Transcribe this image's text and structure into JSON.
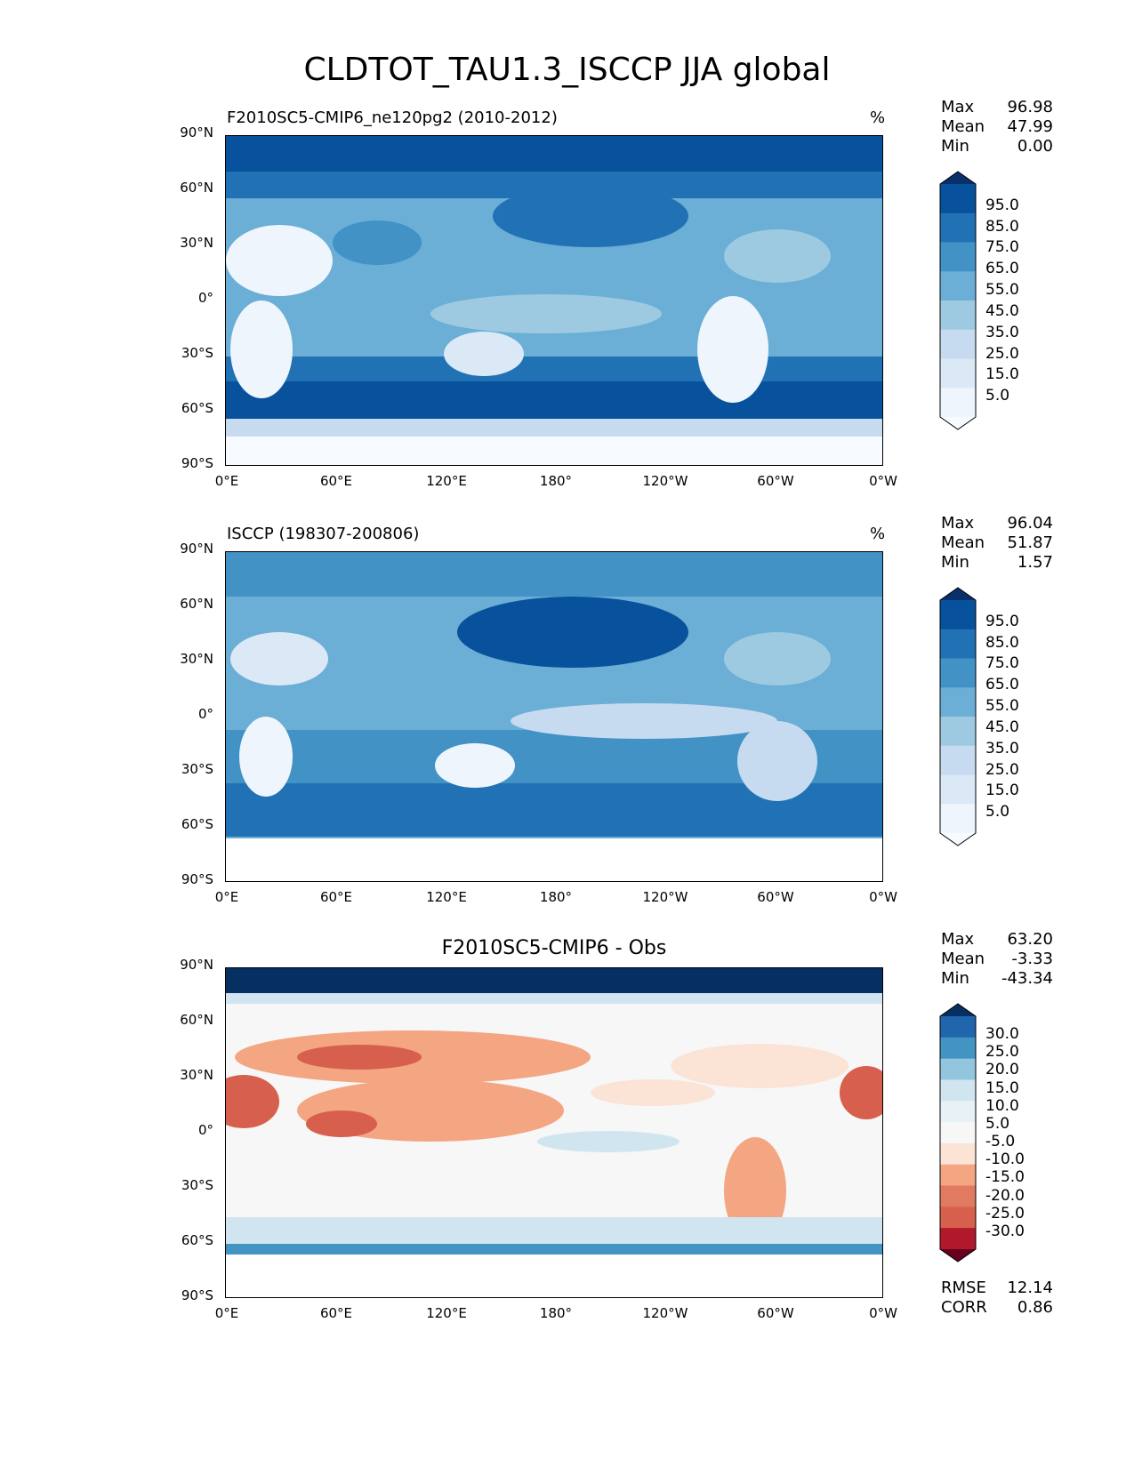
{
  "figure_title": "CLDTOT_TAU1.3_ISCCP JJA global",
  "chart_data": [
    {
      "type": "heatmap",
      "panel": "test",
      "title": "F2010SC5-CMIP6_ne120pg2 (2010-2012)",
      "units": "%",
      "stats": {
        "Max": "96.98",
        "Mean": "47.99",
        "Min": "0.00"
      },
      "xticks": [
        "0°E",
        "60°E",
        "120°E",
        "180°",
        "120°W",
        "60°W",
        "0°W"
      ],
      "yticks": [
        "90°N",
        "60°N",
        "30°N",
        "0°",
        "30°S",
        "60°S",
        "90°S"
      ],
      "xlim": [
        0,
        360
      ],
      "ylim": [
        -90,
        90
      ],
      "colorbar": {
        "labels": [
          "95.0",
          "85.0",
          "75.0",
          "65.0",
          "55.0",
          "45.0",
          "35.0",
          "25.0",
          "15.0",
          "5.0"
        ],
        "colors": [
          "#08306b",
          "#08519c",
          "#2171b5",
          "#4292c6",
          "#6baed6",
          "#9ecae1",
          "#c6dbef",
          "#dbe9f6",
          "#eef5fc",
          "#f7fbff"
        ],
        "extend": "both"
      }
    },
    {
      "type": "heatmap",
      "panel": "reference",
      "title": "ISCCP (198307-200806)",
      "units": "%",
      "stats": {
        "Max": "96.04",
        "Mean": "51.87",
        "Min": "1.57"
      },
      "xticks": [
        "0°E",
        "60°E",
        "120°E",
        "180°",
        "120°W",
        "60°W",
        "0°W"
      ],
      "yticks": [
        "90°N",
        "60°N",
        "30°N",
        "0°",
        "30°S",
        "60°S",
        "90°S"
      ],
      "xlim": [
        0,
        360
      ],
      "ylim": [
        -90,
        90
      ],
      "colorbar": {
        "labels": [
          "95.0",
          "85.0",
          "75.0",
          "65.0",
          "55.0",
          "45.0",
          "35.0",
          "25.0",
          "15.0",
          "5.0"
        ],
        "colors": [
          "#08306b",
          "#08519c",
          "#2171b5",
          "#4292c6",
          "#6baed6",
          "#9ecae1",
          "#c6dbef",
          "#dbe9f6",
          "#eef5fc",
          "#f7fbff"
        ],
        "extend": "both"
      }
    },
    {
      "type": "heatmap",
      "panel": "difference",
      "title": "F2010SC5-CMIP6 - Obs",
      "units": "",
      "stats": {
        "Max": "63.20",
        "Mean": "-3.33",
        "Min": "-43.34"
      },
      "footer_stats": {
        "RMSE": "12.14",
        "CORR": "0.86"
      },
      "xticks": [
        "0°E",
        "60°E",
        "120°E",
        "180°",
        "120°W",
        "60°W",
        "0°W"
      ],
      "yticks": [
        "90°N",
        "60°N",
        "30°N",
        "0°",
        "30°S",
        "60°S",
        "90°S"
      ],
      "xlim": [
        0,
        360
      ],
      "ylim": [
        -90,
        90
      ],
      "colorbar": {
        "labels": [
          "30.0",
          "25.0",
          "20.0",
          "15.0",
          "10.0",
          "5.0",
          "-5.0",
          "-10.0",
          "-15.0",
          "-20.0",
          "-25.0",
          "-30.0"
        ],
        "colors": [
          "#053061",
          "#2166ac",
          "#4393c3",
          "#92c5de",
          "#d1e5f0",
          "#e8f1f6",
          "#f7f7f7",
          "#fbe3d6",
          "#f4a582",
          "#e07a61",
          "#d6604d",
          "#b2182b",
          "#67001f"
        ],
        "extend": "both"
      }
    }
  ]
}
